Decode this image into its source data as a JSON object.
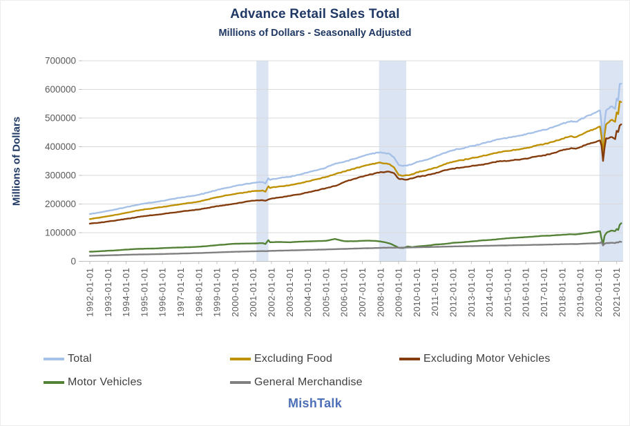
{
  "page": {
    "background": "#FFFFFF"
  },
  "chart_data": {
    "type": "line",
    "title": "Advance Retail Sales Total",
    "subtitle": "Millions of Dollars - Seasonally Adjusted",
    "ylabel": "Millions of Dollars",
    "watermark": "MishTalk",
    "legend_position": "bottom",
    "grid": "horizontal",
    "ylim": [
      0,
      700000
    ],
    "xlim": [
      1992,
      2021.36
    ],
    "y_ticks": [
      0,
      100000,
      200000,
      300000,
      400000,
      500000,
      600000,
      700000
    ],
    "x_tick_labels": [
      "1992-01-01",
      "1993-01-01",
      "1994-01-01",
      "1995-01-01",
      "1996-01-01",
      "1997-01-01",
      "1998-01-01",
      "1999-01-01",
      "2000-01-01",
      "2001-01-01",
      "2002-01-01",
      "2003-01-01",
      "2004-01-01",
      "2005-01-01",
      "2006-01-01",
      "2007-01-01",
      "2008-01-01",
      "2009-01-01",
      "2010-01-01",
      "2011-01-01",
      "2012-01-01",
      "2013-01-01",
      "2014-01-01",
      "2015-01-01",
      "2016-01-01",
      "2017-01-01",
      "2018-01-01",
      "2019-01-01",
      "2020-01-01",
      "2021-01-01"
    ],
    "recession_bands": [
      {
        "start": 2001.17,
        "end": 2001.83
      },
      {
        "start": 2007.92,
        "end": 2009.42
      },
      {
        "start": 2020.05,
        "end": 2021.36
      }
    ],
    "band_color": "#DAE4F3",
    "gridline_color": "#D9D9D9",
    "axis_text_color": "#595959",
    "x": [
      1992,
      1992.5,
      1993,
      1993.5,
      1994,
      1994.5,
      1995,
      1995.5,
      1996,
      1996.5,
      1997,
      1997.5,
      1998,
      1998.5,
      1999,
      1999.5,
      2000,
      2000.5,
      2001,
      2001.5,
      2001.67,
      2001.83,
      2001.92,
      2002,
      2002.5,
      2003,
      2003.5,
      2004,
      2004.5,
      2005,
      2005.5,
      2006,
      2006.5,
      2007,
      2007.25,
      2007.5,
      2007.75,
      2008,
      2008.25,
      2008.5,
      2008.75,
      2009,
      2009.25,
      2009.5,
      2009.75,
      2010,
      2010.25,
      2010.5,
      2010.75,
      2011,
      2011.25,
      2011.5,
      2011.75,
      2012,
      2012.25,
      2012.5,
      2012.75,
      2013,
      2013.25,
      2013.5,
      2013.75,
      2014,
      2014.25,
      2014.5,
      2014.75,
      2015,
      2015.25,
      2015.5,
      2015.75,
      2016,
      2016.25,
      2016.5,
      2016.75,
      2017,
      2017.25,
      2017.5,
      2017.75,
      2018,
      2018.25,
      2018.5,
      2018.75,
      2019,
      2019.25,
      2019.5,
      2019.75,
      2019.917,
      2020,
      2020.083,
      2020.167,
      2020.25,
      2020.333,
      2020.417,
      2020.5,
      2020.583,
      2020.667,
      2020.75,
      2020.833,
      2020.917,
      2021,
      2021.083,
      2021.167,
      2021.25
    ],
    "series": [
      {
        "name": "Total",
        "color": "#A6C1E8",
        "values": [
          165000,
          170000,
          176000,
          182000,
          189000,
          196000,
          202000,
          206000,
          211000,
          217000,
          222000,
          227000,
          232000,
          240000,
          249000,
          256000,
          263000,
          269000,
          274000,
          277000,
          272000,
          290000,
          284000,
          286000,
          291000,
          295000,
          302000,
          310000,
          318000,
          327000,
          341000,
          347000,
          357000,
          367000,
          372000,
          375000,
          379000,
          381000,
          378000,
          375000,
          363000,
          336000,
          333000,
          335000,
          339000,
          347000,
          350000,
          354000,
          359000,
          365000,
          371000,
          378000,
          383000,
          388000,
          392000,
          394000,
          398000,
          402000,
          405000,
          409000,
          413000,
          417000,
          422000,
          426000,
          429000,
          431000,
          434000,
          437000,
          440000,
          443000,
          447000,
          452000,
          456000,
          459000,
          463000,
          468000,
          474000,
          480000,
          485000,
          490000,
          487000,
          495000,
          503000,
          510000,
          517000,
          522000,
          525000,
          527000,
          483000,
          412000,
          486000,
          527000,
          531000,
          534000,
          540000,
          541000,
          536000,
          532000,
          568000,
          561000,
          619000,
          620000
        ]
      },
      {
        "name": "Excluding Food",
        "color": "#BF9000",
        "values": [
          147500,
          152000,
          157500,
          163000,
          169500,
          176000,
          181500,
          185000,
          189500,
          195000,
          199500,
          204000,
          208500,
          216000,
          224000,
          230500,
          235000,
          240500,
          245000,
          247500,
          243000,
          262000,
          256000,
          257500,
          262000,
          265500,
          272000,
          279000,
          286500,
          294500,
          304000,
          313500,
          322500,
          331500,
          336000,
          339000,
          342500,
          344500,
          341500,
          339000,
          327500,
          301500,
          298500,
          300500,
          304000,
          311000,
          313500,
          317000,
          321500,
          326500,
          332000,
          338500,
          343000,
          347500,
          351000,
          353000,
          356500,
          360000,
          362500,
          366000,
          369500,
          373000,
          377500,
          381000,
          383500,
          385000,
          387500,
          390000,
          392500,
          395000,
          398500,
          403000,
          406500,
          409000,
          412500,
          417000,
          422500,
          428000,
          432500,
          437000,
          433500,
          441000,
          448500,
          455000,
          461500,
          466000,
          469000,
          470500,
          436000,
          372000,
          441000,
          478000,
          483000,
          486000,
          492000,
          494000,
          490000,
          487000,
          520000,
          514000,
          558000,
          556000
        ]
      },
      {
        "name": "Excluding Motor Vehicles",
        "color": "#843C0C",
        "values": [
          131500,
          135000,
          139000,
          143500,
          148000,
          153000,
          158000,
          161500,
          165000,
          169500,
          173500,
          177500,
          181000,
          186500,
          192500,
          197000,
          201500,
          207000,
          211500,
          213500,
          211500,
          216000,
          217500,
          219000,
          223500,
          228500,
          233500,
          240500,
          247500,
          255500,
          263000,
          276500,
          287000,
          295500,
          300000,
          303500,
          308000,
          311500,
          311500,
          312500,
          307500,
          288500,
          286500,
          285500,
          289500,
          295000,
          297000,
          299500,
          303000,
          306500,
          311500,
          317500,
          320500,
          323500,
          326500,
          327500,
          330000,
          332500,
          334500,
          336500,
          339500,
          342500,
          346000,
          348500,
          350000,
          350500,
          352500,
          354500,
          356500,
          358500,
          361500,
          365000,
          368000,
          370000,
          373500,
          377500,
          382500,
          387500,
          391500,
          395500,
          393000,
          399000,
          405000,
          410000,
          415000,
          418500,
          420500,
          422000,
          404000,
          350500,
          397000,
          429500,
          428500,
          430500,
          433500,
          433500,
          430000,
          426500,
          455500,
          451500,
          474000,
          478000
        ]
      },
      {
        "name": "Motor Vehicles",
        "color": "#538135",
        "values": [
          33500,
          35000,
          37000,
          38500,
          41000,
          43000,
          44000,
          44500,
          46000,
          47500,
          48500,
          49500,
          51000,
          53500,
          56500,
          59000,
          61500,
          62000,
          62500,
          63500,
          60500,
          74000,
          66500,
          67000,
          67500,
          66500,
          68500,
          69500,
          70500,
          71500,
          78000,
          70500,
          70000,
          71500,
          72000,
          71500,
          71000,
          69500,
          66500,
          62500,
          55500,
          47500,
          46500,
          52000,
          49500,
          52000,
          53000,
          54500,
          56000,
          58500,
          59500,
          60500,
          62500,
          64500,
          65500,
          66500,
          68000,
          69500,
          70500,
          72500,
          73500,
          74500,
          76000,
          77500,
          79000,
          80500,
          81500,
          82500,
          83500,
          84500,
          85500,
          87000,
          88000,
          89000,
          89500,
          90500,
          91500,
          92500,
          93500,
          94500,
          94000,
          96000,
          98000,
          100000,
          102000,
          103500,
          104500,
          105000,
          79000,
          61500,
          89000,
          97500,
          102500,
          103500,
          106500,
          107500,
          106000,
          105500,
          112500,
          109500,
          127500,
          133000
        ]
      },
      {
        "name": "General Merchandise",
        "color": "#7F7F7F",
        "values": [
          19500,
          20200,
          21000,
          21800,
          22800,
          23600,
          24300,
          24800,
          25500,
          26300,
          27200,
          28000,
          29000,
          30000,
          31200,
          32300,
          33400,
          34200,
          35000,
          35600,
          35400,
          36200,
          36400,
          36600,
          37300,
          38000,
          38900,
          39800,
          40600,
          41500,
          42400,
          43400,
          44300,
          45300,
          45700,
          46100,
          46500,
          47000,
          47400,
          47700,
          47500,
          47600,
          47800,
          48200,
          48600,
          49000,
          49300,
          49700,
          50000,
          50400,
          50800,
          51200,
          51600,
          52000,
          52300,
          52600,
          52900,
          53200,
          53500,
          53800,
          54100,
          54400,
          54700,
          55100,
          55400,
          55700,
          56000,
          56300,
          56600,
          56900,
          57200,
          57500,
          57800,
          58200,
          58500,
          58900,
          59300,
          59700,
          60000,
          60400,
          60200,
          61000,
          61600,
          62200,
          62800,
          63200,
          63500,
          63700,
          67500,
          55500,
          61500,
          63500,
          64000,
          63800,
          64500,
          64800,
          64200,
          63800,
          66500,
          65500,
          69000,
          68000
        ]
      }
    ]
  }
}
